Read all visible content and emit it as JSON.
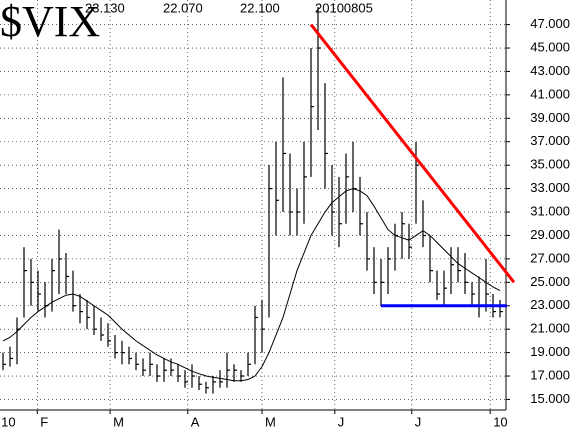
{
  "chart_data": {
    "type": "ohlc",
    "title": "$VIX",
    "header_values": [
      "23.130",
      "22.070",
      "22.100",
      "20100805"
    ],
    "high": [
      19,
      19.5,
      22,
      28,
      27,
      26,
      25,
      27,
      29.5,
      27.5,
      26,
      24,
      23.5,
      23,
      22,
      21.5,
      20.5,
      20,
      19.5,
      19,
      18.5,
      19,
      18,
      18.5,
      18.5,
      18,
      17.5,
      18,
      17,
      16.5,
      17,
      17.5,
      19,
      18,
      17.5,
      19,
      23,
      23.5,
      35,
      37,
      42.5,
      36,
      33,
      37,
      45,
      48.5,
      42,
      35,
      34,
      36,
      37,
      34,
      31,
      28,
      27,
      28,
      30,
      31,
      30,
      37,
      32,
      29,
      26,
      26,
      28,
      28,
      27.5,
      25,
      25.5,
      27,
      24,
      23.5
    ],
    "low": [
      17.5,
      17.8,
      18,
      22,
      23,
      22.5,
      22,
      22.5,
      24,
      24,
      22.5,
      21.5,
      21,
      20.5,
      20,
      19.5,
      18.5,
      18,
      18,
      17.5,
      17,
      17,
      16.5,
      16.5,
      17,
      16.5,
      16,
      16,
      15.8,
      15.5,
      15.5,
      16,
      16,
      16.5,
      16.5,
      17,
      18,
      19,
      22,
      29,
      31,
      29,
      29,
      30,
      34,
      38,
      33,
      29,
      28,
      30,
      31,
      29,
      26,
      24,
      23,
      24,
      26,
      27,
      27,
      30,
      28,
      25,
      23.5,
      23,
      24,
      25,
      24,
      23,
      22,
      22.5,
      22,
      22
    ],
    "close": [
      18,
      18.5,
      21,
      26,
      25,
      24,
      23,
      26,
      27,
      25.5,
      23,
      22.5,
      22,
      21,
      20.5,
      20,
      19,
      19,
      18.5,
      18,
      17.5,
      18,
      17,
      17.5,
      17.5,
      17,
      16.5,
      17,
      16.3,
      16,
      16.5,
      16.5,
      17.5,
      17.5,
      17,
      18,
      22,
      21,
      33,
      32,
      36,
      31,
      31,
      34,
      40,
      45,
      36,
      31,
      30,
      34,
      33,
      30,
      27,
      25,
      25,
      27,
      29,
      30,
      28,
      35,
      29,
      26,
      24,
      24.5,
      26.5,
      26,
      25,
      24,
      23,
      24,
      22.5,
      22.5
    ],
    "ma": [
      20,
      20.3,
      20.8,
      21.4,
      22,
      22.5,
      22.9,
      23.3,
      23.6,
      23.9,
      24,
      23.8,
      23.4,
      23,
      22.6,
      22.2,
      21.6,
      21,
      20.5,
      20,
      19.6,
      19.2,
      18.8,
      18.5,
      18.2,
      18,
      17.7,
      17.4,
      17.2,
      17,
      16.9,
      16.8,
      16.7,
      16.6,
      16.6,
      16.7,
      17,
      17.8,
      19,
      20.5,
      22,
      24,
      26,
      27.5,
      29,
      30,
      31,
      31.8,
      32.3,
      32.8,
      33,
      32.8,
      32.4,
      31.5,
      30.5,
      29.5,
      29,
      28.8,
      28.6,
      29,
      29.4,
      29,
      28.4,
      27.8,
      27.2,
      26.6,
      26.2,
      25.8,
      25.4,
      25,
      24.6,
      24.3
    ],
    "bar_color": "#000000",
    "ma_color": "#000000",
    "trend_lines": [
      {
        "color": "#ff0000",
        "x": [
          44,
          73
        ],
        "y": [
          47,
          25
        ]
      },
      {
        "color": "#0000ff",
        "x": [
          54,
          72
        ],
        "y": [
          23,
          23
        ]
      }
    ],
    "xticks": [
      {
        "value": -0.7,
        "label": "10"
      },
      {
        "value": 4.9,
        "label": "F"
      },
      {
        "value": 15.3,
        "label": "M"
      },
      {
        "value": 26.4,
        "label": "A"
      },
      {
        "value": 37,
        "label": "M"
      },
      {
        "value": 47.4,
        "label": "J"
      },
      {
        "value": 58.4,
        "label": "J"
      },
      {
        "value": 69.6,
        "label": "10"
      }
    ],
    "ylim": [
      14.1,
      49.1
    ],
    "yticks": [
      {
        "value": 15,
        "label": "15.000"
      },
      {
        "value": 17,
        "label": "17.000"
      },
      {
        "value": 19,
        "label": "19.000"
      },
      {
        "value": 21,
        "label": "21.000"
      },
      {
        "value": 23,
        "label": "23.000"
      },
      {
        "value": 25,
        "label": "25.000"
      },
      {
        "value": 27,
        "label": "27.000"
      },
      {
        "value": 29,
        "label": "29.000"
      },
      {
        "value": 31,
        "label": "31.000"
      },
      {
        "value": 33,
        "label": "33.000"
      },
      {
        "value": 35,
        "label": "35.000"
      },
      {
        "value": 37,
        "label": "37.000"
      },
      {
        "value": 39,
        "label": "39.000"
      },
      {
        "value": 41,
        "label": "41.000"
      },
      {
        "value": 43,
        "label": "43.000"
      },
      {
        "value": 45,
        "label": "45.000"
      },
      {
        "value": 47,
        "label": "47.000"
      }
    ],
    "grid": true
  }
}
